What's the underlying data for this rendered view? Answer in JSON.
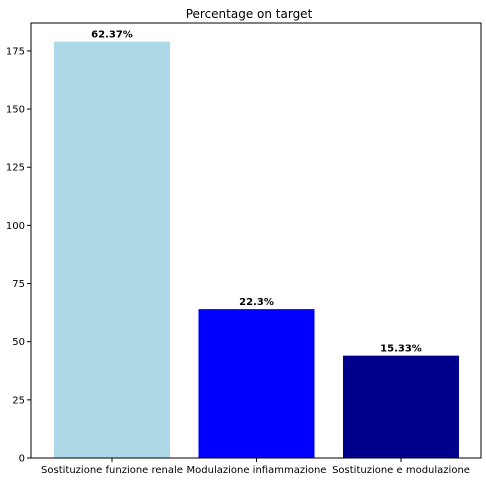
{
  "chart_data": {
    "type": "bar",
    "title": "Percentage on target",
    "xlabel": "",
    "ylabel": "",
    "categories": [
      "Sostituzione funzione renale",
      "Modulazione infiammazione",
      "Sostituzione e modulazione"
    ],
    "values": [
      179,
      64,
      44
    ],
    "data_labels": [
      "62.37%",
      "22.3%",
      "15.33%"
    ],
    "colors": [
      "#add8e6",
      "#0000ff",
      "#00008b"
    ],
    "ylim": [
      0,
      187
    ],
    "yticks": [
      0,
      25,
      50,
      75,
      100,
      125,
      150,
      175
    ],
    "grid": false,
    "legend": "none"
  }
}
